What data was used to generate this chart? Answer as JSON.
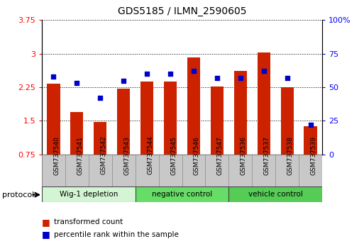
{
  "title": "GDS5185 / ILMN_2590605",
  "samples": [
    "GSM737540",
    "GSM737541",
    "GSM737542",
    "GSM737543",
    "GSM737544",
    "GSM737545",
    "GSM737546",
    "GSM737547",
    "GSM737536",
    "GSM737537",
    "GSM737538",
    "GSM737539"
  ],
  "transformed_count": [
    2.33,
    1.7,
    1.47,
    2.22,
    2.38,
    2.37,
    2.92,
    2.27,
    2.62,
    3.02,
    2.25,
    1.38
  ],
  "percentile_rank": [
    58,
    53,
    42,
    55,
    60,
    60,
    62,
    57,
    57,
    62,
    57,
    22
  ],
  "left_ylim": [
    0.75,
    3.75
  ],
  "right_ylim": [
    0,
    100
  ],
  "left_yticks": [
    0.75,
    1.5,
    2.25,
    3.0,
    3.75
  ],
  "right_yticks": [
    0,
    25,
    50,
    75,
    100
  ],
  "left_yticklabels": [
    "0.75",
    "1.5",
    "2.25",
    "3",
    "3.75"
  ],
  "right_yticklabels": [
    "0",
    "25",
    "50",
    "75",
    "100%"
  ],
  "groups": [
    {
      "label": "Wig-1 depletion",
      "start": 0,
      "end": 4,
      "color": "#d4f5d4"
    },
    {
      "label": "negative control",
      "start": 4,
      "end": 8,
      "color": "#66dd66"
    },
    {
      "label": "vehicle control",
      "start": 8,
      "end": 12,
      "color": "#55cc55"
    }
  ],
  "bar_color": "#cc2200",
  "scatter_color": "#0000cc",
  "bar_width": 0.55,
  "protocol_label": "protocol",
  "legend_items": [
    {
      "label": "transformed count",
      "color": "#cc2200"
    },
    {
      "label": "percentile rank within the sample",
      "color": "#0000cc"
    }
  ],
  "tick_area_color": "#c8c8c8"
}
